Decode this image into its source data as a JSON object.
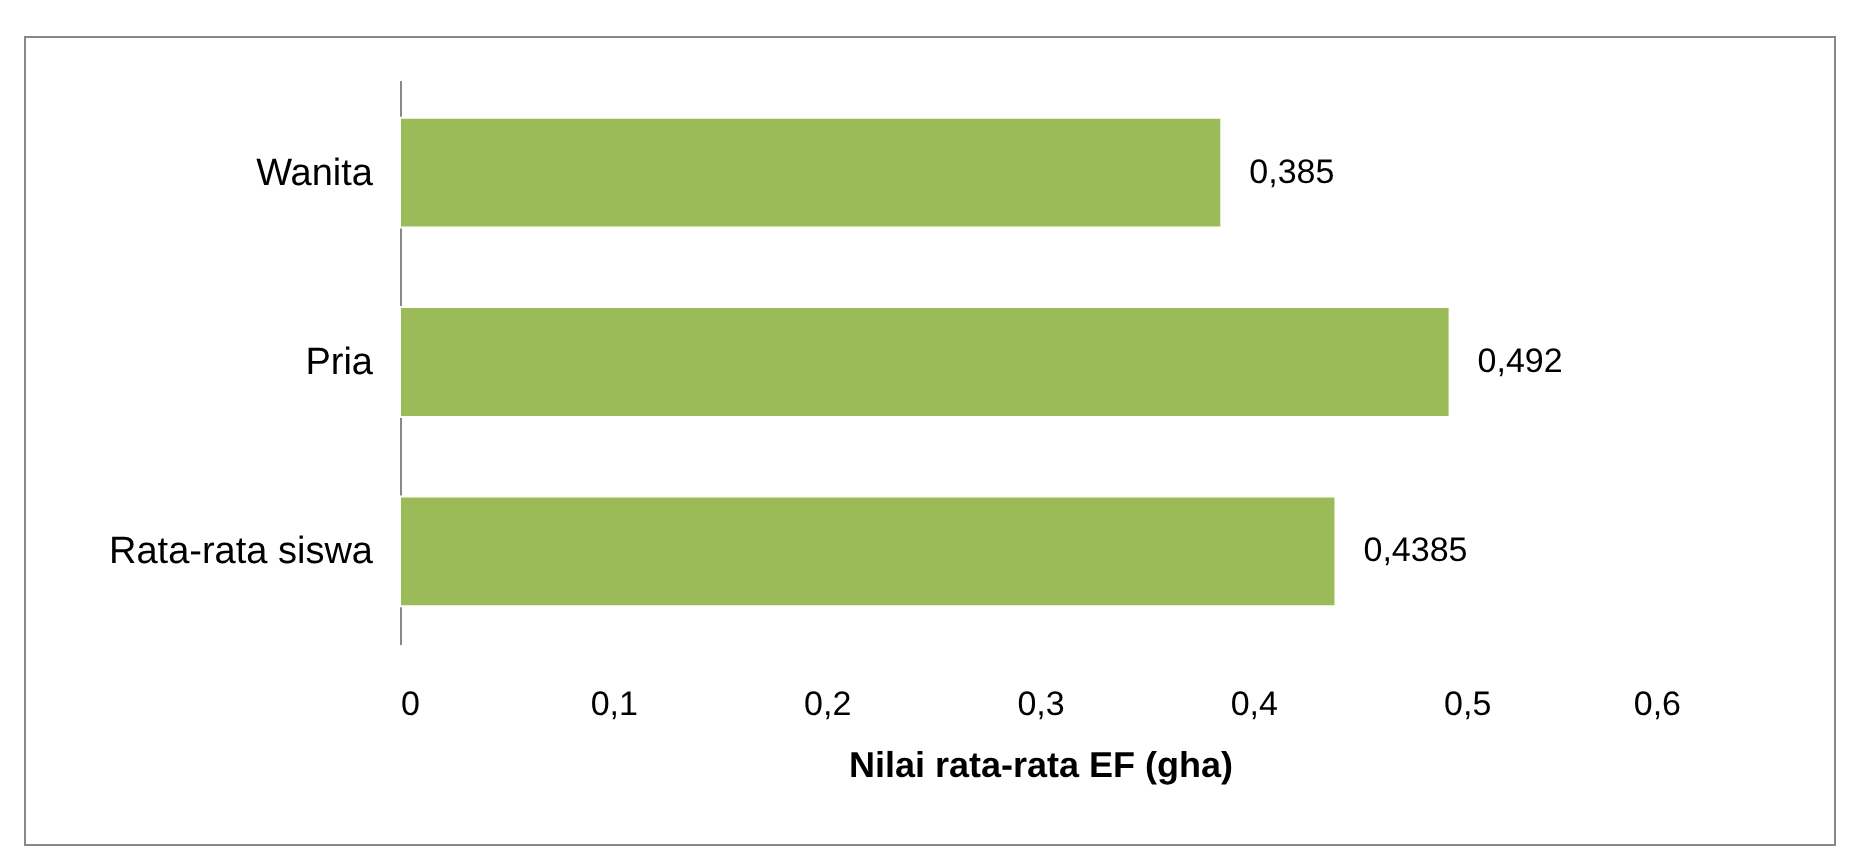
{
  "chart_data": {
    "type": "bar",
    "orientation": "horizontal",
    "xlabel": "Nilai rata-rata EF (gha)",
    "categories": [
      "Wanita",
      "Pria",
      "Rata-rata siswa"
    ],
    "values": [
      0.385,
      0.492,
      0.4385
    ],
    "value_labels": [
      "0,385",
      "0,492",
      "0,4385"
    ],
    "color": "#9bbb59",
    "xlim": [
      0,
      0.6
    ],
    "xticks": [
      0,
      {
        "value": 0.1,
        "label": "0,1"
      },
      {
        "value": 0.2,
        "label": "0,2"
      },
      {
        "value": 0.3,
        "label": "0,3"
      },
      {
        "value": 0.4,
        "label": "0,4"
      },
      {
        "value": 0.5,
        "label": "0,5"
      },
      {
        "value": 0.6,
        "label": "0,6"
      }
    ]
  }
}
